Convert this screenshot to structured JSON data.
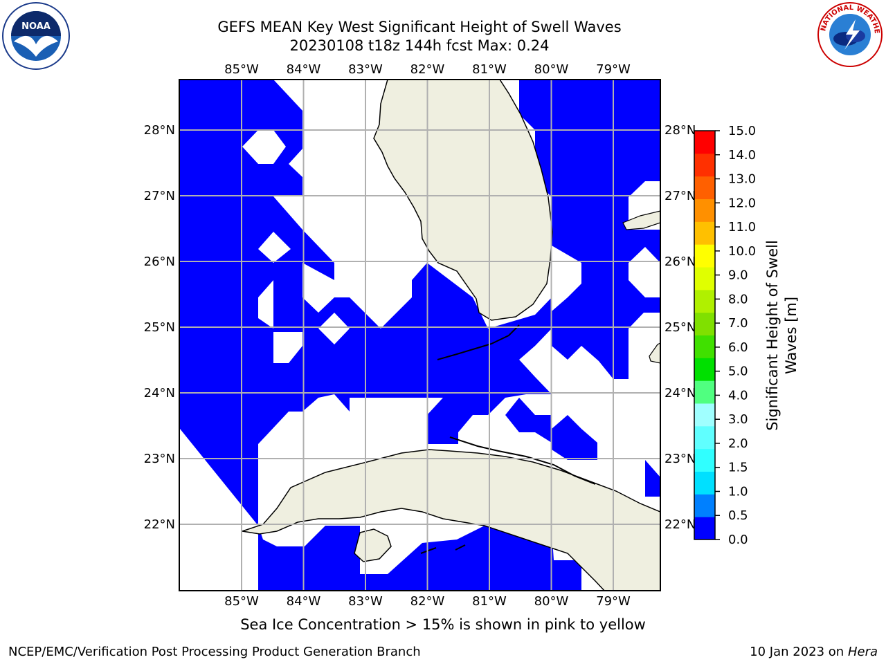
{
  "title": {
    "line1": "GEFS MEAN Key West Significant Height of Swell Waves",
    "line2": "20230108 t18z 144h fcst   Max: 0.24"
  },
  "map": {
    "lon_labels": [
      "85°W",
      "84°W",
      "83°W",
      "82°W",
      "81°W",
      "80°W",
      "79°W"
    ],
    "lat_labels": [
      "28°N",
      "27°N",
      "26°N",
      "25°N",
      "24°N",
      "23°N",
      "22°N"
    ],
    "field_color": "#0000ff",
    "land_color": "#efefe0",
    "grid_color": "#b0b0b0"
  },
  "colorbar": {
    "label_line1": "Significant Height of Swell",
    "label_line2": "Waves [m]",
    "ticks": [
      "0.0",
      "0.5",
      "1.0",
      "1.5",
      "2.0",
      "3.0",
      "4.0",
      "5.0",
      "6.0",
      "7.0",
      "8.0",
      "9.0",
      "10.0",
      "11.0",
      "12.0",
      "13.0",
      "14.0",
      "15.0"
    ],
    "colors": [
      "#0000ff",
      "#0080ff",
      "#00e0ff",
      "#30ffff",
      "#60ffff",
      "#a0ffff",
      "#50ff80",
      "#00e000",
      "#40e000",
      "#80e000",
      "#b0f000",
      "#e0ff00",
      "#ffff00",
      "#ffc000",
      "#ff9000",
      "#ff6000",
      "#ff3000",
      "#ff0000"
    ]
  },
  "logos": {
    "noaa_text": "NOAA",
    "nws_text": "NATIONAL WEATHER SERVICE"
  },
  "footer": {
    "ice_note": "Sea Ice Concentration > 15% is shown in pink to yellow",
    "left": "NCEP/EMC/Verification Post Processing Product Generation Branch",
    "right_date": "10 Jan 2023 on ",
    "right_host": "Hera"
  }
}
